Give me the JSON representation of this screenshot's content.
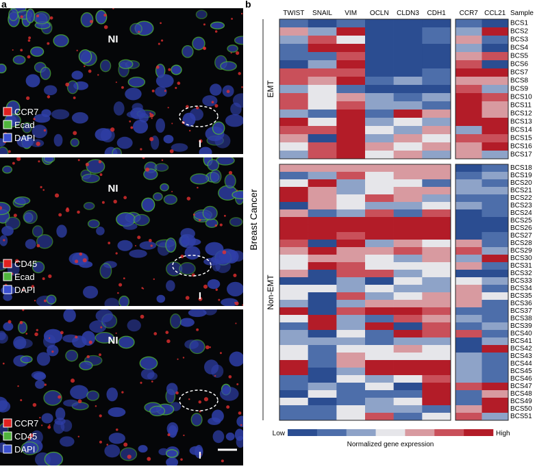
{
  "panel_a": {
    "label": "a",
    "images": [
      {
        "top_label": "NI",
        "bottom_label": "I",
        "channels": [
          "CCR7",
          "Ecad",
          "DAPI"
        ]
      },
      {
        "top_label": "NI",
        "bottom_label": "I",
        "channels": [
          "CD45",
          "Ecad",
          "DAPI"
        ]
      },
      {
        "top_label": "NI",
        "bottom_label": "I",
        "channels": [
          "CCR7",
          "CD45",
          "DAPI"
        ]
      }
    ]
  },
  "chart_data": {
    "type": "heatmap",
    "label": "b",
    "side_label": "Breast Cancer",
    "columns": [
      "TWIST",
      "SNAIL",
      "VIM",
      "OCLN",
      "CLDN3",
      "CDH1",
      "CCR7",
      "CCL21"
    ],
    "column_blocks": [
      6,
      2
    ],
    "row_header": "Sample",
    "row_groups": [
      {
        "name": "EMT",
        "count": 17
      },
      {
        "name": "Non-EMT",
        "count": 34
      }
    ],
    "rows": [
      "BCS1",
      "BCS2",
      "BCS3",
      "BCS4",
      "BCS5",
      "BCS6",
      "BCS7",
      "BCS8",
      "BCS9",
      "BCS10",
      "BCS11",
      "BCS12",
      "BCS13",
      "BCS14",
      "BCS15",
      "BCS16",
      "BCS17",
      "BCS18",
      "BCS19",
      "BCS20",
      "BCS21",
      "BCS22",
      "BCS23",
      "BCS24",
      "BCS25",
      "BCS26",
      "BCS27",
      "BCS28",
      "BCS29",
      "BCS30",
      "BCS31",
      "BCS32",
      "BCS33",
      "BCS34",
      "BCS35",
      "BCS36",
      "BCS37",
      "BCS38",
      "BCS39",
      "BCS40",
      "BCS41",
      "BCS42",
      "BCS43",
      "BCS44",
      "BCS45",
      "BCS46",
      "BCS47",
      "BCS48",
      "BCS49",
      "BCS50",
      "BCS51"
    ],
    "values": [
      [
        -2,
        -3,
        -2,
        -3,
        -3,
        -3,
        -2,
        -3
      ],
      [
        1,
        -1,
        3,
        -3,
        -3,
        -2,
        -1,
        3
      ],
      [
        -1,
        2,
        0,
        -3,
        -3,
        -2,
        1,
        -2
      ],
      [
        -2,
        3,
        3,
        -3,
        -3,
        -3,
        -1,
        -3
      ],
      [
        -2,
        -2,
        2,
        -3,
        -3,
        -3,
        1,
        2
      ],
      [
        -3,
        -1,
        3,
        -3,
        -3,
        -3,
        2,
        -3
      ],
      [
        2,
        2,
        2,
        -3,
        -3,
        -2,
        3,
        3
      ],
      [
        2,
        1,
        3,
        -2,
        -1,
        -2,
        1,
        1
      ],
      [
        -1,
        0,
        -2,
        -3,
        -3,
        -3,
        2,
        -1
      ],
      [
        2,
        0,
        1,
        -1,
        -2,
        -1,
        3,
        2
      ],
      [
        2,
        0,
        2,
        -1,
        -1,
        -2,
        3,
        1
      ],
      [
        -1,
        -2,
        3,
        -2,
        3,
        1,
        3,
        1
      ],
      [
        3,
        0,
        3,
        -1,
        0,
        -1,
        3,
        3
      ],
      [
        2,
        2,
        3,
        0,
        -1,
        1,
        -1,
        3
      ],
      [
        1,
        -3,
        3,
        -1,
        1,
        0,
        2,
        2
      ],
      [
        0,
        2,
        3,
        1,
        0,
        1,
        1,
        3
      ],
      [
        -1,
        2,
        3,
        0,
        1,
        -1,
        1,
        -1
      ],
      [
        1,
        1,
        1,
        1,
        1,
        1,
        -3,
        -2
      ],
      [
        -2,
        -1,
        2,
        0,
        1,
        1,
        -2,
        -1
      ],
      [
        0,
        3,
        -1,
        0,
        0,
        -2,
        -1,
        -2
      ],
      [
        3,
        1,
        -1,
        0,
        1,
        1,
        -1,
        -1
      ],
      [
        3,
        1,
        0,
        2,
        1,
        -1,
        -2,
        -2
      ],
      [
        -3,
        1,
        0,
        -1,
        -1,
        0,
        -1,
        -2
      ],
      [
        1,
        -2,
        -1,
        2,
        -2,
        2,
        -3,
        -2
      ],
      [
        3,
        3,
        3,
        3,
        3,
        3,
        -3,
        -3
      ],
      [
        3,
        3,
        3,
        3,
        3,
        3,
        -3,
        -3
      ],
      [
        3,
        3,
        2,
        3,
        3,
        3,
        -3,
        -2
      ],
      [
        2,
        -3,
        3,
        -1,
        1,
        0,
        1,
        -2
      ],
      [
        1,
        3,
        1,
        1,
        2,
        1,
        2,
        -1
      ],
      [
        0,
        1,
        1,
        0,
        -1,
        1,
        -1,
        3
      ],
      [
        0,
        3,
        2,
        0,
        0,
        0,
        1,
        -2
      ],
      [
        1,
        -3,
        2,
        2,
        -1,
        0,
        -3,
        -3
      ],
      [
        -3,
        -3,
        -1,
        -3,
        0,
        -1,
        0,
        -1
      ],
      [
        0,
        0,
        -1,
        0,
        -1,
        -1,
        1,
        -2
      ],
      [
        0,
        -3,
        2,
        -1,
        0,
        1,
        1,
        0
      ],
      [
        -1,
        -3,
        -1,
        1,
        1,
        1,
        1,
        -2
      ],
      [
        3,
        -3,
        2,
        3,
        3,
        2,
        -2,
        -2
      ],
      [
        0,
        3,
        -1,
        -2,
        2,
        1,
        -1,
        -2
      ],
      [
        -2,
        3,
        -1,
        3,
        -3,
        2,
        -2,
        -1
      ],
      [
        -1,
        -3,
        0,
        -2,
        3,
        2,
        2,
        -2
      ],
      [
        -1,
        -1,
        -1,
        -2,
        -1,
        -1,
        -3,
        -1
      ],
      [
        0,
        -2,
        0,
        0,
        1,
        0,
        -3,
        3
      ],
      [
        0,
        -2,
        1,
        0,
        0,
        0,
        -1,
        -2
      ],
      [
        3,
        -2,
        1,
        3,
        3,
        3,
        -1,
        -2
      ],
      [
        3,
        -3,
        -1,
        3,
        3,
        3,
        -1,
        -2
      ],
      [
        -2,
        -3,
        0,
        -1,
        0,
        2,
        -1,
        -2
      ],
      [
        -2,
        -1,
        -2,
        0,
        -3,
        3,
        2,
        3
      ],
      [
        -3,
        0,
        -2,
        -2,
        -2,
        3,
        -2,
        1
      ],
      [
        0,
        -3,
        -2,
        -1,
        0,
        3,
        -2,
        3
      ],
      [
        -2,
        -2,
        0,
        -1,
        -1,
        -2,
        1,
        3
      ],
      [
        -2,
        -2,
        0,
        2,
        -2,
        0,
        2,
        -1
      ]
    ],
    "zlim": [
      -3,
      3
    ],
    "colors": [
      "#2b4d91",
      "#4d6eaa",
      "#8ea3c8",
      "#e6e6ea",
      "#d89aa0",
      "#c9505a",
      "#b31c28"
    ],
    "colorbar": {
      "low": "Low",
      "high": "High",
      "title": "Normalized gene expression"
    }
  }
}
